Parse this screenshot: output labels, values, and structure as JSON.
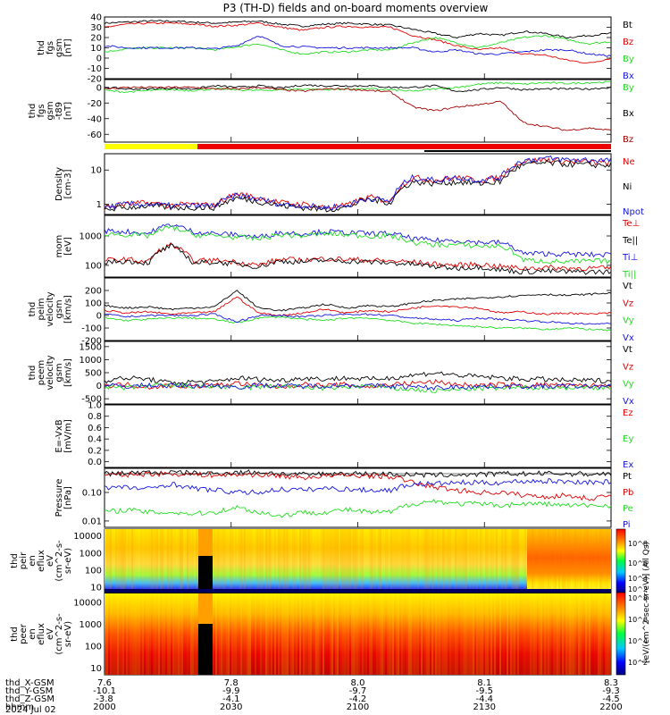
{
  "title": "P3 (TH-D) fields and on-board moments overview",
  "date_label": "2024 Jul 02",
  "orbit_rows": [
    {
      "label": "thd_X-GSM",
      "values": [
        "7.6",
        "7.8",
        "8.0",
        "8.1",
        "8.3"
      ]
    },
    {
      "label": "thd_Y-GSM",
      "values": [
        "-10.1",
        "-9.9",
        "-9.7",
        "-9.5",
        "-9.3"
      ]
    },
    {
      "label": "thd_Z-GSM",
      "values": [
        "-3.8",
        "-4.1",
        "-4.2",
        "-4.4",
        "-4.5"
      ]
    },
    {
      "label": "hhmm",
      "values": [
        "2000",
        "2030",
        "2100",
        "2130",
        "2200"
      ]
    }
  ],
  "colorbar": {
    "label": "[eV/(cm^2-sec-sr-eV)] (All Qs)",
    "ticks_top": [
      "10^8",
      "10^6",
      "10^4",
      "10^2"
    ],
    "ticks_bottom": [
      "10^8",
      "10^6",
      "10^4",
      "10^2"
    ]
  },
  "colors": {
    "black": "#000000",
    "red": "#e00000",
    "green": "#22dd22",
    "blue": "#1414dd",
    "darkred": "#a00000"
  },
  "chart_data": [
    {
      "type": "line",
      "panel": "fgs_gsm",
      "ylabel": [
        "thd",
        "fgs",
        "gsm",
        "[nT]"
      ],
      "ylim": [
        -20,
        40
      ],
      "ticks": [
        "40",
        "30",
        "20",
        "10",
        "0",
        "-10",
        "-20"
      ],
      "series": [
        {
          "name": "Bt",
          "color": "#000000",
          "values": [
            34,
            35,
            36,
            36,
            35,
            34,
            35,
            36,
            33,
            31,
            33,
            34,
            33,
            32,
            28,
            24,
            20,
            24,
            22,
            26,
            24,
            20,
            22,
            24
          ]
        },
        {
          "name": "Bz",
          "color": "#e00000",
          "values": [
            30,
            33,
            34,
            34,
            33,
            31,
            32,
            34,
            30,
            27,
            30,
            31,
            30,
            30,
            22,
            18,
            12,
            8,
            10,
            4,
            3,
            -2,
            -5,
            0
          ]
        },
        {
          "name": "By",
          "color": "#22dd22",
          "values": [
            6,
            9,
            10,
            10,
            10,
            8,
            11,
            14,
            8,
            4,
            6,
            6,
            8,
            8,
            15,
            20,
            15,
            10,
            15,
            20,
            22,
            18,
            14,
            16
          ]
        },
        {
          "name": "Bx",
          "color": "#1414dd",
          "values": [
            12,
            10,
            10,
            10,
            10,
            9,
            12,
            22,
            12,
            11,
            10,
            10,
            10,
            10,
            10,
            6,
            8,
            4,
            4,
            6,
            8,
            8,
            4,
            2
          ]
        }
      ]
    },
    {
      "type": "line",
      "panel": "fgs_gsm_t89",
      "ylabel": [
        "thd",
        "fgs",
        "gsm",
        "-t89",
        "[nT]"
      ],
      "ylim": [
        -70,
        10
      ],
      "ticks": [
        "0",
        "-20",
        "-40",
        "-60"
      ],
      "series": [
        {
          "name": "By",
          "color": "#22dd22",
          "values": [
            -4,
            -6,
            -4,
            -3,
            -4,
            -2,
            -3,
            -4,
            -3,
            -2,
            -3,
            -2,
            -2,
            -3,
            -5,
            -2,
            0,
            4,
            6,
            4,
            6,
            5,
            6,
            7
          ]
        },
        {
          "name": "Bx",
          "color": "#000000",
          "values": [
            0,
            -2,
            -2,
            -1,
            -2,
            2,
            0,
            2,
            -1,
            3,
            2,
            2,
            2,
            0,
            0,
            2,
            -5,
            -3,
            0,
            -3,
            -2,
            -2,
            -2,
            0
          ]
        },
        {
          "name": "Bz",
          "color": "#a00000",
          "values": [
            -2,
            0,
            0,
            0,
            0,
            -2,
            -2,
            0,
            -3,
            -5,
            -2,
            -2,
            -4,
            -6,
            -25,
            -30,
            -25,
            -22,
            -18,
            -45,
            -50,
            -55,
            -52,
            -55
          ]
        }
      ]
    },
    {
      "type": "line",
      "panel": "density",
      "log": true,
      "ylabel": [
        "Density",
        "[cm-3]"
      ],
      "ylim": [
        0.5,
        30
      ],
      "ticks": [
        "10",
        "1"
      ],
      "series": [
        {
          "name": "Ne",
          "color": "#e00000",
          "values": [
            0.8,
            1,
            1.1,
            0.9,
            1,
            0.9,
            2,
            1.5,
            1.1,
            1,
            0.8,
            0.9,
            1.6,
            1.2,
            6,
            5,
            6,
            5,
            6,
            18,
            20,
            18,
            17,
            16
          ]
        },
        {
          "name": "Ni",
          "color": "#000000",
          "values": [
            0.7,
            0.8,
            0.9,
            0.8,
            0.8,
            0.8,
            1.5,
            1.2,
            0.9,
            0.8,
            0.7,
            0.8,
            1.4,
            1.1,
            4.5,
            4,
            4.5,
            4,
            4.5,
            14,
            16,
            15,
            14,
            14
          ]
        },
        {
          "name": "Npot",
          "color": "#1414dd",
          "values": [
            0.8,
            1,
            1,
            0.9,
            0.9,
            0.9,
            1.8,
            1.4,
            1,
            0.9,
            0.8,
            0.9,
            1.5,
            1.2,
            6,
            5,
            6,
            5,
            6,
            19,
            22,
            20,
            20,
            19
          ]
        }
      ]
    },
    {
      "type": "line",
      "panel": "temperature",
      "log": true,
      "ylabel": [
        "mom",
        "[eV]"
      ],
      "ylim": [
        40,
        5000
      ],
      "ticks": [
        "1000",
        "100"
      ],
      "series": [
        {
          "name": "Te⊥",
          "color": "#e00000",
          "values": [
            150,
            160,
            130,
            500,
            140,
            150,
            130,
            100,
            160,
            150,
            170,
            160,
            150,
            140,
            130,
            110,
            100,
            110,
            90,
            80,
            85,
            80,
            80,
            80
          ]
        },
        {
          "name": "Te||",
          "color": "#000000",
          "values": [
            130,
            140,
            120,
            450,
            120,
            130,
            110,
            90,
            140,
            130,
            150,
            140,
            130,
            120,
            110,
            90,
            80,
            90,
            70,
            60,
            65,
            60,
            60,
            60
          ]
        },
        {
          "name": "Ti⊥",
          "color": "#1414dd",
          "values": [
            1500,
            1400,
            1200,
            2500,
            1400,
            1200,
            1100,
            900,
            1300,
            1200,
            1400,
            1300,
            1200,
            1200,
            800,
            700,
            700,
            600,
            600,
            250,
            250,
            240,
            230,
            230
          ]
        },
        {
          "name": "Ti||",
          "color": "#22dd22",
          "values": [
            1200,
            1100,
            1000,
            2000,
            1100,
            1000,
            900,
            800,
            1100,
            1000,
            1200,
            1100,
            1000,
            1000,
            600,
            500,
            500,
            450,
            450,
            150,
            140,
            130,
            140,
            140
          ]
        }
      ]
    },
    {
      "type": "line",
      "panel": "peim_velocity",
      "ylabel": [
        "thd",
        "peim",
        "velocity",
        "gsm",
        "[km/s]"
      ],
      "ylim": [
        -200,
        300
      ],
      "ticks": [
        "200",
        "100",
        "0",
        "-100",
        "-200"
      ],
      "series": [
        {
          "name": "Vt",
          "color": "#000000",
          "values": [
            80,
            60,
            70,
            50,
            60,
            70,
            200,
            60,
            40,
            60,
            90,
            60,
            80,
            70,
            100,
            120,
            130,
            140,
            150,
            160,
            170,
            160,
            170,
            180
          ]
        },
        {
          "name": "Vz",
          "color": "#e00000",
          "values": [
            40,
            20,
            30,
            10,
            20,
            30,
            150,
            20,
            0,
            20,
            50,
            20,
            40,
            30,
            60,
            80,
            70,
            60,
            20,
            30,
            10,
            20,
            10,
            20
          ]
        },
        {
          "name": "Vy",
          "color": "#22dd22",
          "values": [
            -20,
            -40,
            -30,
            -20,
            -20,
            -30,
            -60,
            -20,
            -10,
            -30,
            -40,
            -20,
            -20,
            -40,
            -60,
            -70,
            -80,
            -90,
            -100,
            -100,
            -110,
            -100,
            -110,
            -120
          ]
        },
        {
          "name": "Vx",
          "color": "#1414dd",
          "values": [
            10,
            -10,
            0,
            0,
            0,
            10,
            -50,
            0,
            0,
            -10,
            0,
            10,
            10,
            0,
            -20,
            -30,
            -40,
            -20,
            -30,
            -40,
            -50,
            -60,
            -70,
            -60
          ]
        }
      ]
    },
    {
      "type": "line",
      "panel": "peem_velocity",
      "ylabel": [
        "thd",
        "peem",
        "velocity",
        "gsm",
        "[km/s]"
      ],
      "ylim": [
        -700,
        1700
      ],
      "ticks": [
        "1500",
        "1000",
        "500",
        "0",
        "-500"
      ],
      "series": [
        {
          "name": "Vt",
          "color": "#000000",
          "values": [
            200,
            300,
            250,
            100,
            150,
            150,
            300,
            250,
            200,
            300,
            250,
            300,
            250,
            300,
            400,
            500,
            400,
            350,
            300,
            250,
            250,
            200,
            200,
            200
          ]
        },
        {
          "name": "Vz",
          "color": "#e00000",
          "values": [
            0,
            50,
            -50,
            0,
            -20,
            10,
            100,
            0,
            -50,
            50,
            0,
            50,
            -50,
            50,
            100,
            150,
            50,
            0,
            50,
            0,
            50,
            0,
            0,
            20
          ]
        },
        {
          "name": "Vy",
          "color": "#22dd22",
          "values": [
            -50,
            -100,
            0,
            0,
            -20,
            -30,
            -100,
            -50,
            0,
            -50,
            -100,
            -50,
            0,
            -100,
            -150,
            -200,
            -150,
            -100,
            -100,
            -80,
            -60,
            -80,
            -70,
            -60
          ]
        },
        {
          "name": "Vx",
          "color": "#1414dd",
          "values": [
            0,
            -20,
            20,
            0,
            0,
            0,
            -50,
            20,
            0,
            -20,
            0,
            20,
            0,
            -20,
            -50,
            -80,
            -50,
            -30,
            -20,
            -20,
            -30,
            -20,
            -20,
            -30
          ]
        }
      ]
    },
    {
      "type": "line",
      "panel": "efield",
      "ylabel": [
        "E=-VxB",
        "[mV/m]"
      ],
      "ylim": [
        -0.1,
        1.0
      ],
      "ticks": [
        "1.0",
        "0.8",
        "0.6",
        "0.4",
        "0.2",
        "0.0"
      ],
      "series": [
        {
          "name": "Ez",
          "color": "#e00000",
          "values": []
        },
        {
          "name": "Ey",
          "color": "#22dd22",
          "values": []
        },
        {
          "name": "Ex",
          "color": "#1414dd",
          "values": []
        }
      ]
    },
    {
      "type": "line",
      "panel": "pressure",
      "log": true,
      "ylabel": [
        "Pressure",
        "[nPa]"
      ],
      "ylim": [
        0.006,
        0.7
      ],
      "ticks": [
        "0.10",
        "0.01"
      ],
      "series": [
        {
          "name": "Pt",
          "color": "#000000",
          "values": [
            0.45,
            0.48,
            0.5,
            0.5,
            0.48,
            0.46,
            0.5,
            0.52,
            0.45,
            0.42,
            0.45,
            0.46,
            0.45,
            0.44,
            0.42,
            0.4,
            0.42,
            0.42,
            0.45,
            0.45,
            0.46,
            0.45,
            0.44,
            0.45
          ]
        },
        {
          "name": "Pb",
          "color": "#e00000",
          "values": [
            0.4,
            0.42,
            0.45,
            0.45,
            0.43,
            0.4,
            0.42,
            0.42,
            0.38,
            0.33,
            0.38,
            0.4,
            0.38,
            0.36,
            0.22,
            0.15,
            0.12,
            0.1,
            0.1,
            0.08,
            0.07,
            0.08,
            0.06,
            0.08
          ]
        },
        {
          "name": "Pe",
          "color": "#22dd22",
          "values": [
            0.02,
            0.025,
            0.02,
            0.02,
            0.018,
            0.02,
            0.03,
            0.02,
            0.015,
            0.02,
            0.02,
            0.025,
            0.02,
            0.02,
            0.04,
            0.05,
            0.04,
            0.04,
            0.035,
            0.04,
            0.04,
            0.035,
            0.035,
            0.035
          ]
        },
        {
          "name": "Pi",
          "color": "#1414dd",
          "values": [
            0.15,
            0.15,
            0.13,
            0.2,
            0.14,
            0.12,
            0.1,
            0.1,
            0.13,
            0.12,
            0.14,
            0.13,
            0.12,
            0.12,
            0.2,
            0.2,
            0.22,
            0.22,
            0.22,
            0.25,
            0.25,
            0.24,
            0.23,
            0.23
          ]
        }
      ]
    },
    {
      "type": "heatmap",
      "panel": "peir_spectrogram",
      "ylabel": [
        "thd",
        "peir",
        "en",
        "eflux",
        "eV",
        "(cm^2-s-",
        "sr-eV)"
      ],
      "log": true,
      "ylim": [
        5,
        25000
      ],
      "ticks": [
        "10000",
        "1000",
        "100",
        "10"
      ]
    },
    {
      "type": "heatmap",
      "panel": "peer_spectrogram",
      "ylabel": [
        "thd",
        "peer",
        "en",
        "eflux",
        "eV",
        "(cm^2-s-",
        "sr-eV)"
      ],
      "log": true,
      "ylim": [
        5,
        25000
      ],
      "ticks": [
        "10000",
        "1000",
        "100",
        "10"
      ]
    }
  ]
}
